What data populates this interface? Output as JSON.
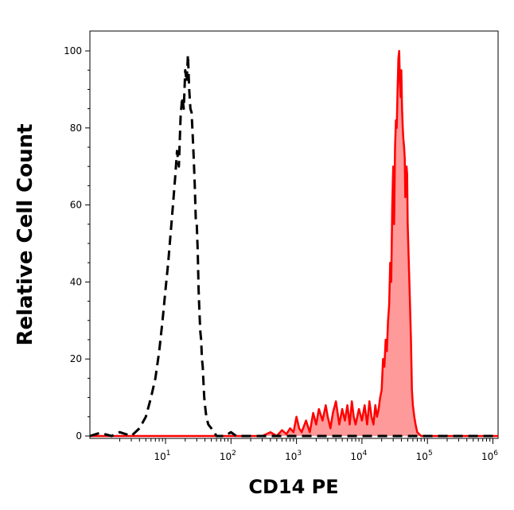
{
  "chart_data": {
    "type": "area",
    "title": "",
    "xlabel": "CD14 PE",
    "ylabel": "Relative Cell Count",
    "x_scale": "log",
    "xlim": [
      0.7,
      1200000
    ],
    "ylim": [
      0,
      100
    ],
    "x_ticks": [
      {
        "value": 10,
        "base": "10",
        "exp": "1"
      },
      {
        "value": 100,
        "base": "10",
        "exp": "2"
      },
      {
        "value": 1000,
        "base": "10",
        "exp": "3"
      },
      {
        "value": 10000,
        "base": "10",
        "exp": "4"
      },
      {
        "value": 100000,
        "base": "10",
        "exp": "5"
      },
      {
        "value": 1000000,
        "base": "10",
        "exp": "6"
      }
    ],
    "y_ticks": [
      0,
      20,
      40,
      60,
      80,
      100
    ],
    "grid": false,
    "series": [
      {
        "style": "dashed",
        "color": "#000000",
        "fill": false,
        "points": [
          [
            0.7,
            0
          ],
          [
            1,
            0.8
          ],
          [
            1.5,
            0
          ],
          [
            2,
            1
          ],
          [
            3,
            0
          ],
          [
            4,
            2
          ],
          [
            5,
            5
          ],
          [
            6,
            10
          ],
          [
            7,
            15
          ],
          [
            8,
            22
          ],
          [
            9,
            30
          ],
          [
            10,
            38
          ],
          [
            11,
            45
          ],
          [
            12,
            53
          ],
          [
            13,
            60
          ],
          [
            14,
            67
          ],
          [
            15,
            74
          ],
          [
            16,
            70
          ],
          [
            17,
            83
          ],
          [
            18,
            88
          ],
          [
            19,
            85
          ],
          [
            20,
            95
          ],
          [
            21,
            92
          ],
          [
            22,
            99
          ],
          [
            23,
            90
          ],
          [
            24,
            85
          ],
          [
            25,
            84
          ],
          [
            26,
            78
          ],
          [
            27,
            72
          ],
          [
            28,
            65
          ],
          [
            29,
            56
          ],
          [
            30,
            55
          ],
          [
            31,
            48
          ],
          [
            32,
            38
          ],
          [
            33,
            32
          ],
          [
            34,
            27
          ],
          [
            35,
            25
          ],
          [
            36,
            20
          ],
          [
            37,
            18
          ],
          [
            38,
            14
          ],
          [
            39,
            10
          ],
          [
            40,
            8
          ],
          [
            42,
            5
          ],
          [
            45,
            3
          ],
          [
            50,
            2
          ],
          [
            55,
            1
          ],
          [
            60,
            0
          ],
          [
            80,
            0
          ],
          [
            100,
            1
          ],
          [
            120,
            0
          ],
          [
            1200000,
            0
          ]
        ]
      },
      {
        "style": "solid",
        "color": "#ff0000",
        "fill": true,
        "fill_color": "#ff9a9a",
        "points": [
          [
            0.7,
            0
          ],
          [
            300,
            0
          ],
          [
            400,
            1
          ],
          [
            500,
            0
          ],
          [
            600,
            1.5
          ],
          [
            700,
            0.5
          ],
          [
            800,
            2
          ],
          [
            900,
            1
          ],
          [
            1000,
            5
          ],
          [
            1100,
            2
          ],
          [
            1200,
            1
          ],
          [
            1400,
            4
          ],
          [
            1600,
            1
          ],
          [
            1800,
            6
          ],
          [
            2000,
            3
          ],
          [
            2200,
            7
          ],
          [
            2500,
            4
          ],
          [
            2800,
            8
          ],
          [
            3000,
            5
          ],
          [
            3300,
            2
          ],
          [
            3600,
            6
          ],
          [
            4000,
            9
          ],
          [
            4500,
            3
          ],
          [
            5000,
            7
          ],
          [
            5500,
            4
          ],
          [
            6000,
            8
          ],
          [
            6500,
            3
          ],
          [
            7000,
            9
          ],
          [
            7500,
            5
          ],
          [
            8000,
            3
          ],
          [
            9000,
            7
          ],
          [
            10000,
            4
          ],
          [
            11000,
            8
          ],
          [
            12000,
            3
          ],
          [
            13000,
            9
          ],
          [
            14000,
            5
          ],
          [
            15000,
            3
          ],
          [
            16000,
            8
          ],
          [
            17000,
            5
          ],
          [
            18000,
            7
          ],
          [
            19000,
            10
          ],
          [
            20000,
            12
          ],
          [
            21000,
            20
          ],
          [
            22000,
            18
          ],
          [
            23000,
            25
          ],
          [
            24000,
            22
          ],
          [
            25000,
            30
          ],
          [
            26000,
            34
          ],
          [
            27000,
            45
          ],
          [
            28000,
            40
          ],
          [
            29000,
            60
          ],
          [
            30000,
            70
          ],
          [
            31000,
            55
          ],
          [
            32000,
            75
          ],
          [
            33000,
            82
          ],
          [
            34000,
            80
          ],
          [
            35000,
            90
          ],
          [
            36000,
            98
          ],
          [
            37000,
            100
          ],
          [
            38000,
            92
          ],
          [
            39000,
            88
          ],
          [
            40000,
            95
          ],
          [
            41000,
            85
          ],
          [
            42000,
            80
          ],
          [
            43000,
            77
          ],
          [
            44000,
            75
          ],
          [
            45000,
            72
          ],
          [
            46000,
            62
          ],
          [
            47000,
            65
          ],
          [
            48000,
            70
          ],
          [
            49000,
            68
          ],
          [
            50000,
            55
          ],
          [
            52000,
            45
          ],
          [
            54000,
            35
          ],
          [
            56000,
            25
          ],
          [
            58000,
            12
          ],
          [
            60000,
            8
          ],
          [
            63000,
            5
          ],
          [
            66000,
            3
          ],
          [
            70000,
            1
          ],
          [
            80000,
            0
          ],
          [
            1200000,
            0
          ]
        ]
      }
    ]
  }
}
